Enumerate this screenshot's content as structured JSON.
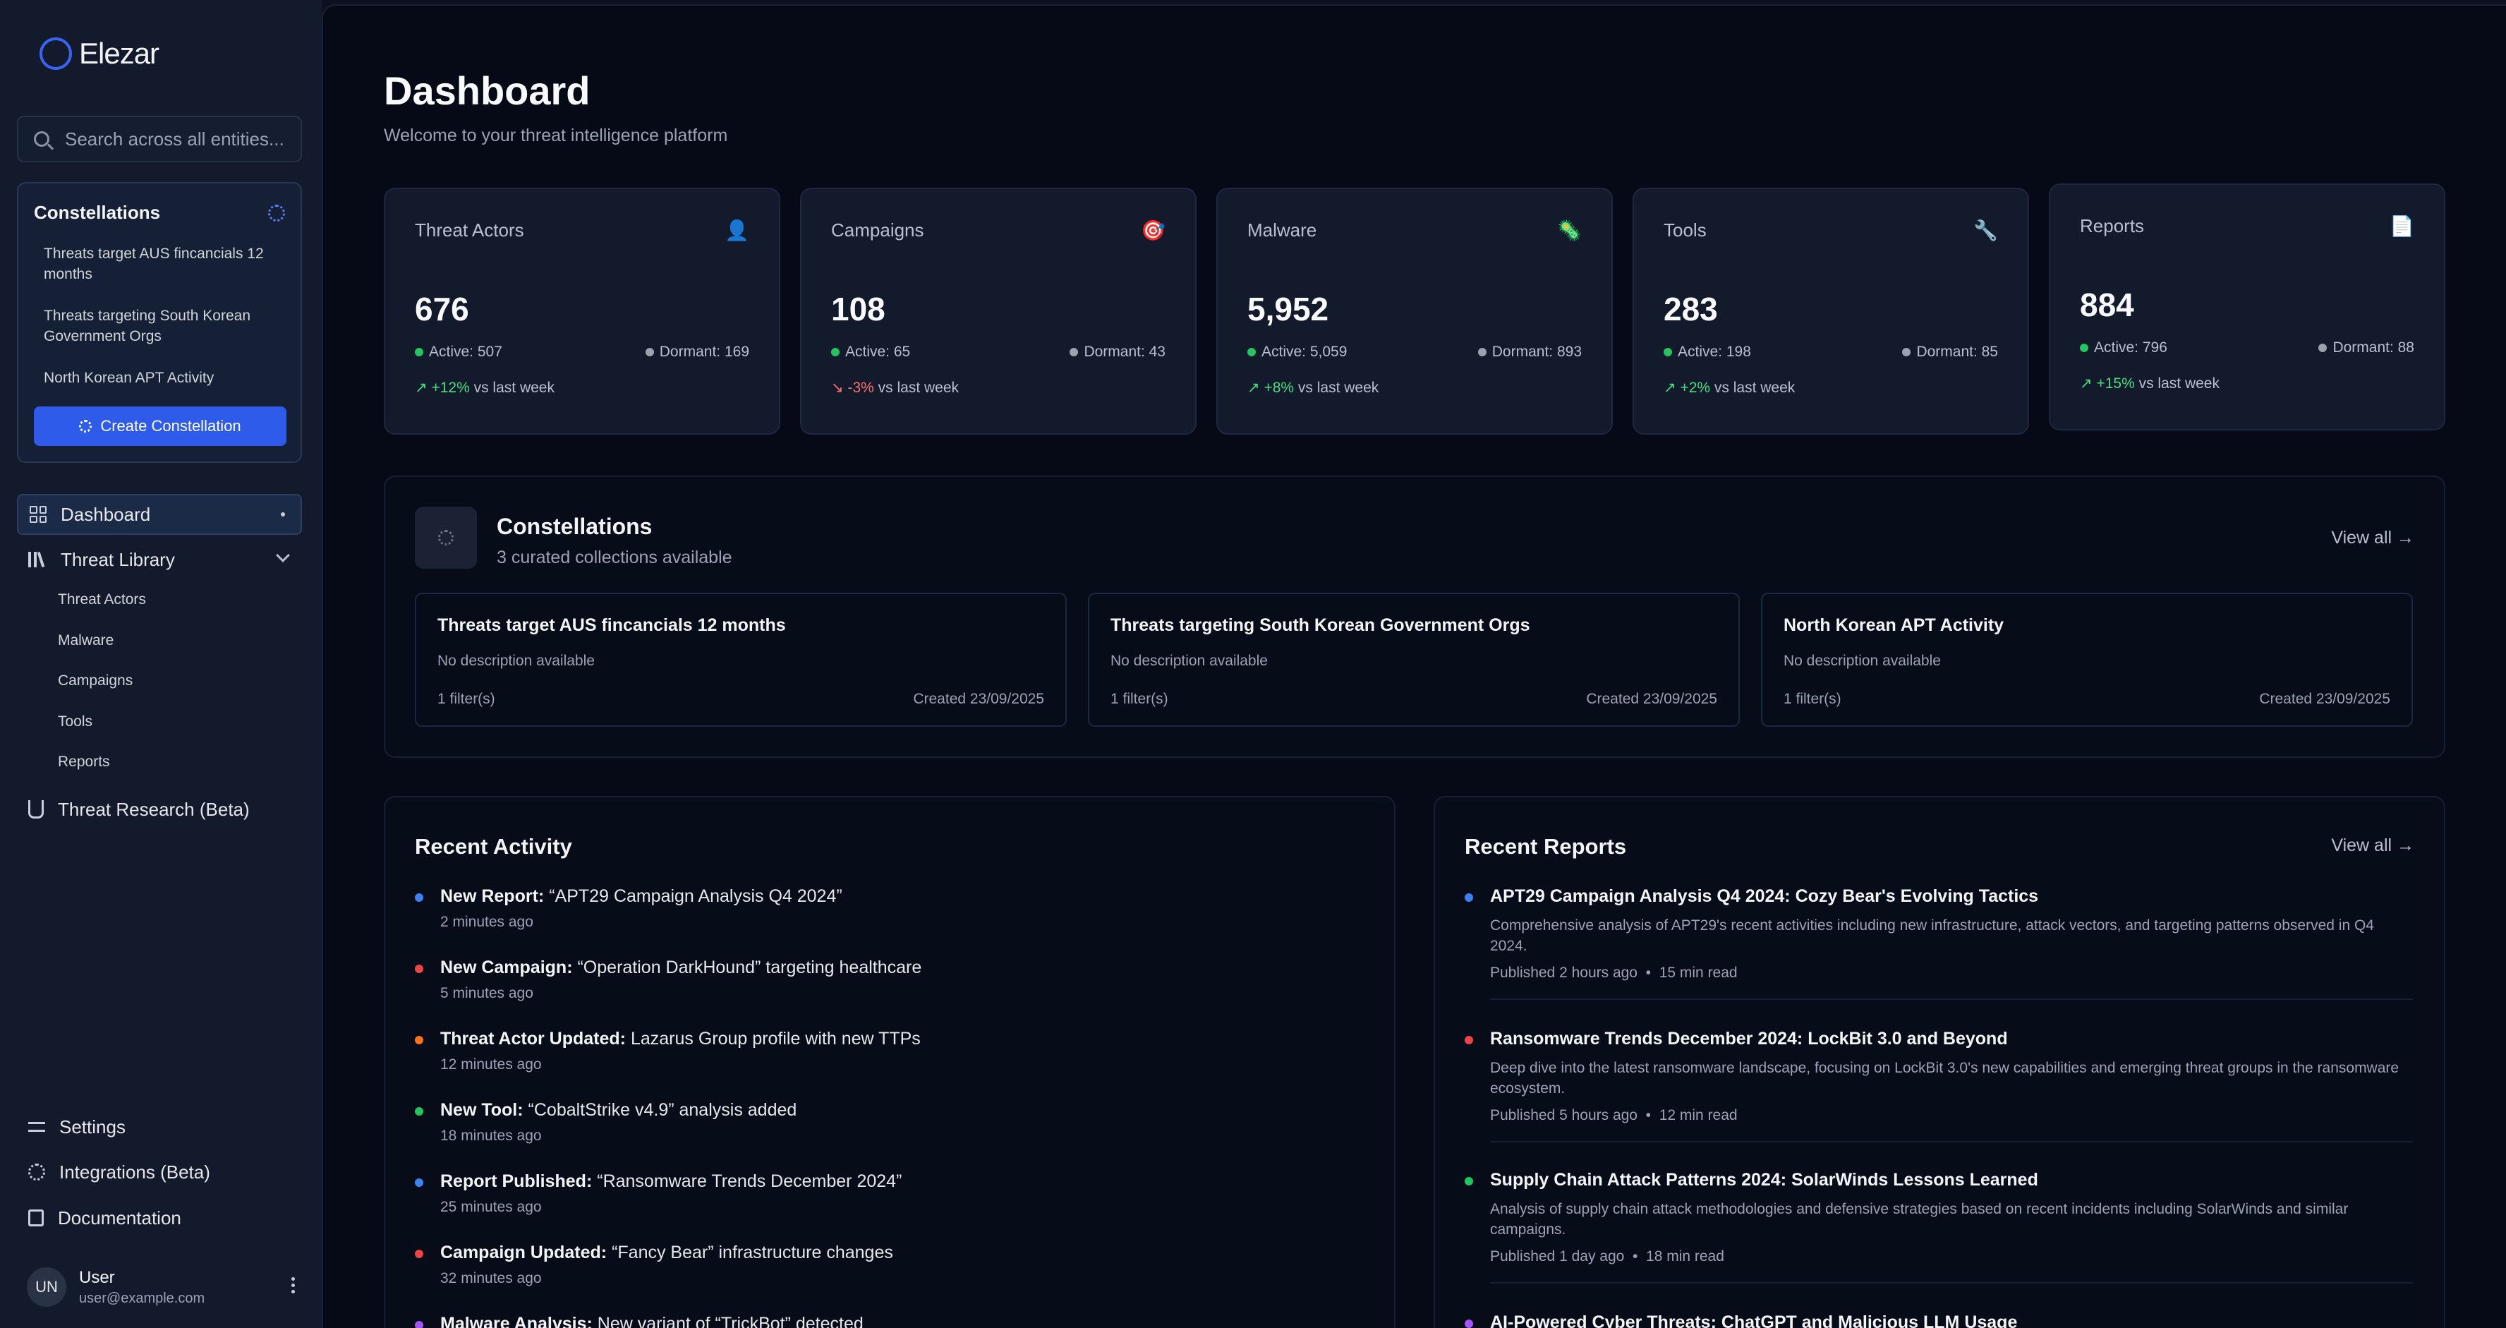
{
  "app": {
    "name": "Elezar"
  },
  "search": {
    "placeholder": "Search across all entities..."
  },
  "sidebar_constellations": {
    "title": "Constellations",
    "items": [
      "Threats target AUS fincancials 12 months",
      "Threats targeting South Korean Government Orgs",
      "North Korean APT Activity"
    ],
    "create_label": "Create Constellation"
  },
  "nav": {
    "dashboard": "Dashboard",
    "threat_library": "Threat Library",
    "library_items": [
      "Threat Actors",
      "Malware",
      "Campaigns",
      "Tools",
      "Reports"
    ],
    "threat_research": "Threat Research (Beta)",
    "settings": "Settings",
    "integrations": "Integrations (Beta)",
    "documentation": "Documentation"
  },
  "user": {
    "initials": "UN",
    "name": "User",
    "email": "user@example.com"
  },
  "header": {
    "title": "Dashboard",
    "subtitle": "Welcome to your threat intelligence platform"
  },
  "stats": [
    {
      "label": "Threat Actors",
      "icon": "👤",
      "value": "676",
      "active": "Active: 507",
      "dormant": "Dormant: 169",
      "trend_arrow": "↗",
      "trend": "+12%",
      "trend_suffix": "vs last week"
    },
    {
      "label": "Campaigns",
      "icon": "🎯",
      "value": "108",
      "active": "Active: 65",
      "dormant": "Dormant: 43",
      "trend_arrow": "↘",
      "trend": "-3%",
      "trend_suffix": "vs last week"
    },
    {
      "label": "Malware",
      "icon": "🦠",
      "value": "5,952",
      "active": "Active: 5,059",
      "dormant": "Dormant: 893",
      "trend_arrow": "↗",
      "trend": "+8%",
      "trend_suffix": "vs last week"
    },
    {
      "label": "Tools",
      "icon": "🔧",
      "value": "283",
      "active": "Active: 198",
      "dormant": "Dormant: 85",
      "trend_arrow": "↗",
      "trend": "+2%",
      "trend_suffix": "vs last week"
    },
    {
      "label": "Reports",
      "icon": "📄",
      "value": "884",
      "active": "Active: 796",
      "dormant": "Dormant: 88",
      "trend_arrow": "↗",
      "trend": "+15%",
      "trend_suffix": "vs last week"
    }
  ],
  "constellations": {
    "title": "Constellations",
    "subtitle": "3 curated collections available",
    "view_all": "View all →",
    "cards": [
      {
        "title": "Threats target AUS fincancials 12 months",
        "desc": "No description available",
        "filters": "1 filter(s)",
        "created": "Created 23/09/2025"
      },
      {
        "title": "Threats targeting South Korean Government Orgs",
        "desc": "No description available",
        "filters": "1 filter(s)",
        "created": "Created 23/09/2025"
      },
      {
        "title": "North Korean APT Activity",
        "desc": "No description available",
        "filters": "1 filter(s)",
        "created": "Created 23/09/2025"
      }
    ]
  },
  "activity": {
    "title": "Recent Activity",
    "items": [
      {
        "label": "New Report:",
        "text": "“APT29 Campaign Analysis Q4 2024”",
        "time": "2 minutes ago",
        "color": "#3b82f6"
      },
      {
        "label": "New Campaign:",
        "text": "“Operation DarkHound” targeting healthcare",
        "time": "5 minutes ago",
        "color": "#ef4444"
      },
      {
        "label": "Threat Actor Updated:",
        "text": "Lazarus Group profile with new TTPs",
        "time": "12 minutes ago",
        "color": "#f97316"
      },
      {
        "label": "New Tool:",
        "text": "“CobaltStrike v4.9” analysis added",
        "time": "18 minutes ago",
        "color": "#22c55e"
      },
      {
        "label": "Report Published:",
        "text": "“Ransomware Trends December 2024”",
        "time": "25 minutes ago",
        "color": "#3b82f6"
      },
      {
        "label": "Campaign Updated:",
        "text": "“Fancy Bear” infrastructure changes",
        "time": "32 minutes ago",
        "color": "#ef4444"
      },
      {
        "label": "Malware Analysis:",
        "text": "New variant of “TrickBot” detected",
        "time": "",
        "color": "#a855f7"
      }
    ]
  },
  "reports": {
    "title": "Recent Reports",
    "view_all": "View all →",
    "items": [
      {
        "title": "APT29 Campaign Analysis Q4 2024: Cozy Bear's Evolving Tactics",
        "desc": "Comprehensive analysis of APT29's recent activities including new infrastructure, attack vectors, and targeting patterns observed in Q4 2024.",
        "published": "Published 2 hours ago",
        "read": "15 min read",
        "color": "#3b82f6"
      },
      {
        "title": "Ransomware Trends December 2024: LockBit 3.0 and Beyond",
        "desc": "Deep dive into the latest ransomware landscape, focusing on LockBit 3.0's new capabilities and emerging threat groups in the ransomware ecosystem.",
        "published": "Published 5 hours ago",
        "read": "12 min read",
        "color": "#ef4444"
      },
      {
        "title": "Supply Chain Attack Patterns 2024: SolarWinds Lessons Learned",
        "desc": "Analysis of supply chain attack methodologies and defensive strategies based on recent incidents including SolarWinds and similar campaigns.",
        "published": "Published 1 day ago",
        "read": "18 min read",
        "color": "#22c55e"
      },
      {
        "title": "AI-Powered Cyber Threats: ChatGPT and Malicious LLM Usage",
        "desc": "",
        "published": "",
        "read": "",
        "color": "#a855f7"
      }
    ]
  }
}
